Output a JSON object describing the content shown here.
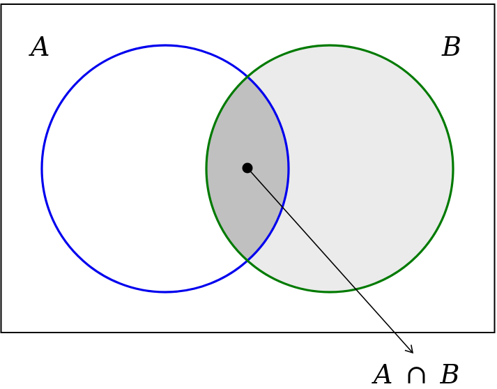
{
  "sets": {
    "a": {
      "label": "A",
      "stroke_color": "#0000ee",
      "fill_color": "#ffffff"
    },
    "b": {
      "label": "B",
      "stroke_color": "#007a00",
      "fill_color": "#ebebeb"
    }
  },
  "intersection": {
    "label_left": "A",
    "label_op": "∩",
    "label_right": "B",
    "fill_color": "#c0c0c0"
  },
  "universe": {
    "stroke_color": "#000000"
  }
}
